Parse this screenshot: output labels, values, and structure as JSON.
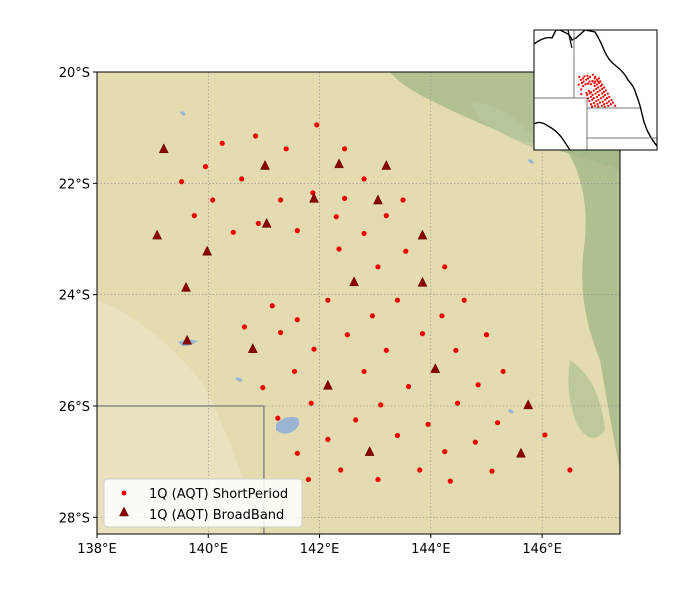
{
  "map": {
    "xlim": [
      138.0,
      147.4
    ],
    "ylim": [
      -28.3,
      -20.0
    ],
    "x_ticks": [
      {
        "value": 138,
        "label": "138°E"
      },
      {
        "value": 140,
        "label": "140°E"
      },
      {
        "value": 142,
        "label": "142°E"
      },
      {
        "value": 144,
        "label": "144°E"
      },
      {
        "value": 146,
        "label": "146°E"
      }
    ],
    "y_ticks": [
      {
        "value": -20,
        "label": "20°S"
      },
      {
        "value": -22,
        "label": "22°S"
      },
      {
        "value": -24,
        "label": "24°S"
      },
      {
        "value": -26,
        "label": "26°S"
      },
      {
        "value": -28,
        "label": "28°S"
      }
    ],
    "grid": true,
    "basemap": "terrain (arid tan with green vegetation to the east, blue lakes)",
    "state_border": {
      "lon": 141.0,
      "lat": -26.0
    },
    "colors": {
      "background": "#e4dcb0",
      "vegetation": "#a3b888",
      "water": "#9ab4d4",
      "border": "#777777",
      "short_period": "#ee0000",
      "broadband": "#8b0000"
    }
  },
  "legend": {
    "location": "lower-left",
    "entries": [
      {
        "label": "1Q (AQT) ShortPeriod",
        "marker": "circle",
        "color": "#ee0000"
      },
      {
        "label": "1Q (AQT) BroadBand",
        "marker": "triangle",
        "color": "#8b0000"
      }
    ]
  },
  "inset": {
    "shows": "location of station region within eastern Australia",
    "xlim": [
      130.0,
      155.0
    ],
    "ylim": [
      -36.0,
      -12.0
    ]
  },
  "chart_data": {
    "type": "scatter",
    "xlabel": "",
    "ylabel": "",
    "series": [
      {
        "name": "1Q (AQT) ShortPeriod",
        "marker": "circle",
        "points": [
          [
            141.95,
            -20.95
          ],
          [
            140.85,
            -21.15
          ],
          [
            140.25,
            -21.28
          ],
          [
            141.4,
            -21.38
          ],
          [
            142.45,
            -21.38
          ],
          [
            139.95,
            -21.7
          ],
          [
            140.6,
            -21.92
          ],
          [
            139.52,
            -21.97
          ],
          [
            142.8,
            -21.92
          ],
          [
            141.88,
            -22.17
          ],
          [
            140.08,
            -22.3
          ],
          [
            141.3,
            -22.3
          ],
          [
            142.45,
            -22.27
          ],
          [
            143.5,
            -22.3
          ],
          [
            139.75,
            -22.58
          ],
          [
            142.3,
            -22.6
          ],
          [
            143.2,
            -22.58
          ],
          [
            140.9,
            -22.72
          ],
          [
            140.45,
            -22.88
          ],
          [
            141.6,
            -22.85
          ],
          [
            142.8,
            -22.9
          ],
          [
            142.35,
            -23.18
          ],
          [
            143.55,
            -23.22
          ],
          [
            143.05,
            -23.5
          ],
          [
            144.25,
            -23.5
          ],
          [
            142.15,
            -24.1
          ],
          [
            143.4,
            -24.1
          ],
          [
            144.6,
            -24.1
          ],
          [
            141.15,
            -24.2
          ],
          [
            141.6,
            -24.45
          ],
          [
            142.95,
            -24.38
          ],
          [
            144.2,
            -24.38
          ],
          [
            140.65,
            -24.58
          ],
          [
            141.3,
            -24.68
          ],
          [
            142.5,
            -24.72
          ],
          [
            143.85,
            -24.7
          ],
          [
            145.0,
            -24.72
          ],
          [
            141.9,
            -24.98
          ],
          [
            143.2,
            -25.0
          ],
          [
            144.45,
            -25.0
          ],
          [
            141.55,
            -25.38
          ],
          [
            142.8,
            -25.38
          ],
          [
            145.3,
            -25.38
          ],
          [
            143.6,
            -25.65
          ],
          [
            144.85,
            -25.62
          ],
          [
            140.98,
            -25.67
          ],
          [
            141.85,
            -25.95
          ],
          [
            143.1,
            -25.98
          ],
          [
            144.48,
            -25.95
          ],
          [
            141.25,
            -26.22
          ],
          [
            142.65,
            -26.25
          ],
          [
            145.2,
            -26.3
          ],
          [
            143.95,
            -26.33
          ],
          [
            143.4,
            -26.53
          ],
          [
            146.05,
            -26.52
          ],
          [
            142.15,
            -26.6
          ],
          [
            144.8,
            -26.65
          ],
          [
            141.6,
            -26.85
          ],
          [
            144.25,
            -26.82
          ],
          [
            142.38,
            -27.15
          ],
          [
            143.8,
            -27.15
          ],
          [
            145.1,
            -27.17
          ],
          [
            146.5,
            -27.15
          ],
          [
            141.8,
            -27.32
          ],
          [
            143.05,
            -27.32
          ],
          [
            144.35,
            -27.35
          ]
        ]
      },
      {
        "name": "1Q (AQT) BroadBand",
        "marker": "triangle",
        "points": [
          [
            139.2,
            -21.38
          ],
          [
            141.02,
            -21.68
          ],
          [
            142.35,
            -21.65
          ],
          [
            143.2,
            -21.68
          ],
          [
            141.9,
            -22.27
          ],
          [
            143.05,
            -22.3
          ],
          [
            141.05,
            -22.72
          ],
          [
            139.08,
            -22.93
          ],
          [
            143.85,
            -22.93
          ],
          [
            139.98,
            -23.22
          ],
          [
            142.62,
            -23.77
          ],
          [
            143.85,
            -23.78
          ],
          [
            139.6,
            -23.87
          ],
          [
            139.62,
            -24.82
          ],
          [
            140.8,
            -24.97
          ],
          [
            144.08,
            -25.33
          ],
          [
            142.15,
            -25.63
          ],
          [
            145.75,
            -25.98
          ],
          [
            142.9,
            -26.82
          ],
          [
            145.62,
            -26.85
          ]
        ]
      }
    ]
  }
}
